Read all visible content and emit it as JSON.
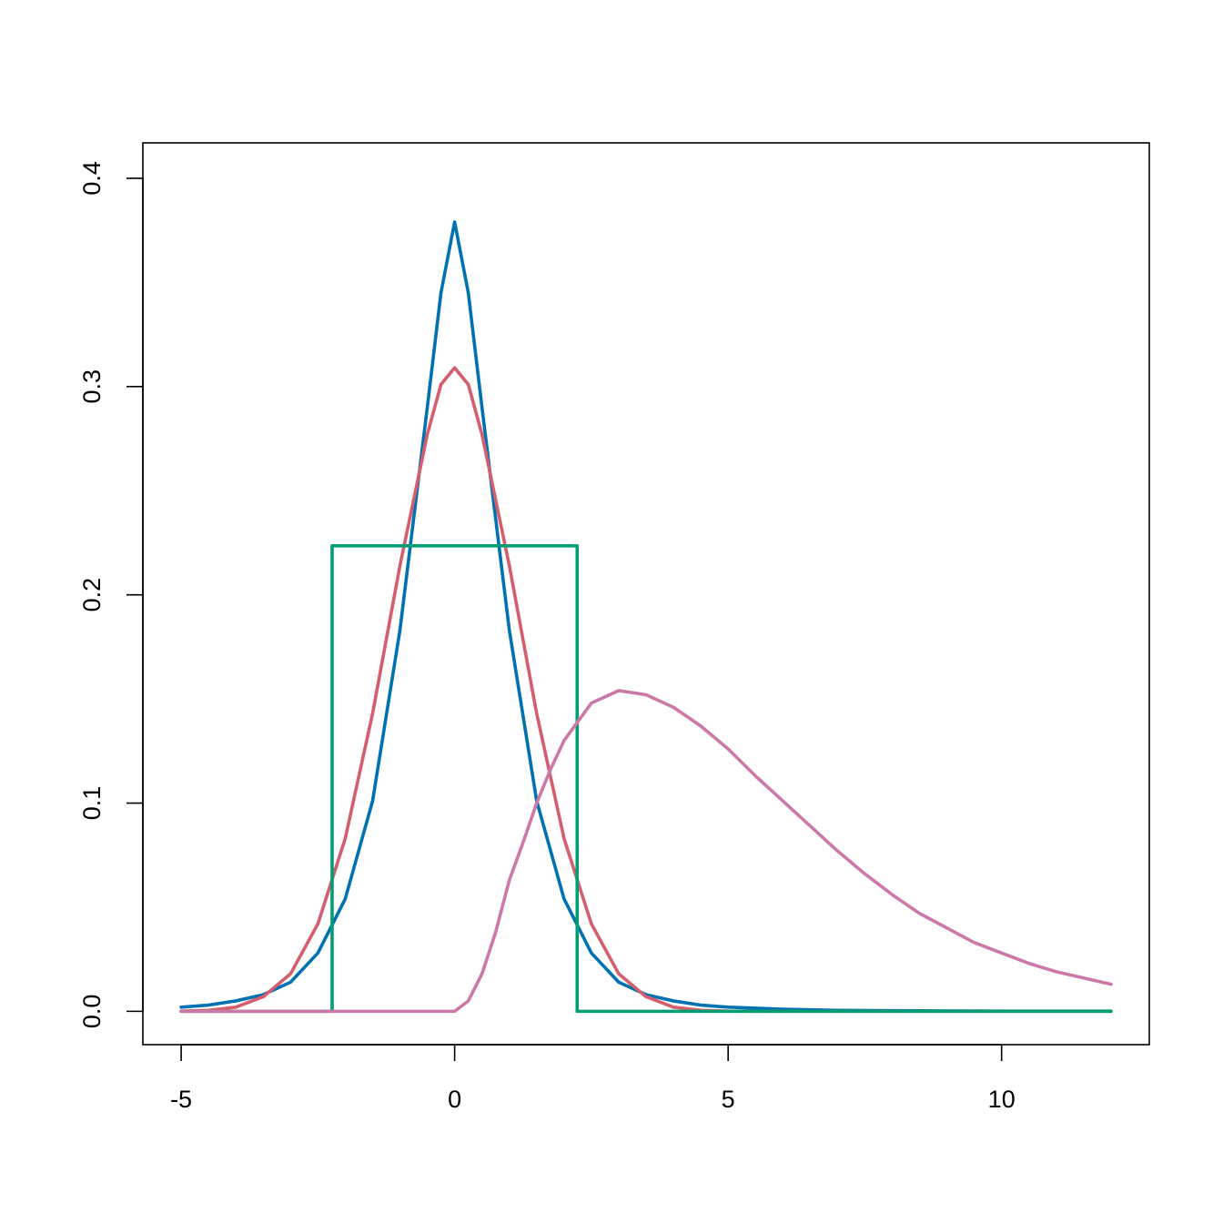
{
  "chart_data": {
    "type": "line",
    "title": "",
    "xlabel": "",
    "ylabel": "",
    "xlim": [
      -5.7,
      12.7
    ],
    "ylim": [
      -0.016,
      0.417
    ],
    "x_ticks": [
      -5,
      0,
      5,
      10
    ],
    "x_tick_labels": [
      "-5",
      "0",
      "5",
      "10"
    ],
    "y_ticks": [
      0.0,
      0.1,
      0.2,
      0.3,
      0.4
    ],
    "y_tick_labels": [
      "0.0",
      "0.1",
      "0.2",
      "0.3",
      "0.4"
    ],
    "grid": false,
    "legend": "none",
    "series": [
      {
        "color": "#0072B2",
        "points": [
          [
            -5,
            0.002
          ],
          [
            -4.5,
            0.003
          ],
          [
            -4,
            0.005
          ],
          [
            -3.5,
            0.008
          ],
          [
            -3,
            0.014
          ],
          [
            -2.5,
            0.028
          ],
          [
            -2,
            0.054
          ],
          [
            -1.5,
            0.101
          ],
          [
            -1,
            0.183
          ],
          [
            -0.5,
            0.29
          ],
          [
            -0.25,
            0.345
          ],
          [
            0,
            0.379
          ],
          [
            0.25,
            0.345
          ],
          [
            0.5,
            0.29
          ],
          [
            1,
            0.183
          ],
          [
            1.5,
            0.101
          ],
          [
            2,
            0.054
          ],
          [
            2.5,
            0.028
          ],
          [
            3,
            0.014
          ],
          [
            3.5,
            0.008
          ],
          [
            4,
            0.005
          ],
          [
            4.5,
            0.003
          ],
          [
            5,
            0.002
          ],
          [
            6,
            0.001
          ],
          [
            7,
            0.0005
          ],
          [
            8,
            0.0003
          ],
          [
            9,
            0.0002
          ],
          [
            10,
            0.0001
          ],
          [
            11,
            0.0001
          ],
          [
            12,
            0.0001
          ]
        ]
      },
      {
        "color": "#D55E6E",
        "points": [
          [
            -5,
            0.0001
          ],
          [
            -4.5,
            0.0005
          ],
          [
            -4,
            0.002
          ],
          [
            -3.5,
            0.007
          ],
          [
            -3,
            0.018
          ],
          [
            -2.5,
            0.042
          ],
          [
            -2,
            0.083
          ],
          [
            -1.5,
            0.143
          ],
          [
            -1,
            0.214
          ],
          [
            -0.5,
            0.277
          ],
          [
            -0.25,
            0.301
          ],
          [
            0,
            0.309
          ],
          [
            0.25,
            0.301
          ],
          [
            0.5,
            0.277
          ],
          [
            1,
            0.214
          ],
          [
            1.5,
            0.143
          ],
          [
            2,
            0.083
          ],
          [
            2.5,
            0.042
          ],
          [
            3,
            0.018
          ],
          [
            3.5,
            0.007
          ],
          [
            4,
            0.002
          ],
          [
            4.5,
            0.0005
          ],
          [
            5,
            0.0001
          ],
          [
            6,
            0
          ],
          [
            8,
            0
          ],
          [
            10,
            0
          ],
          [
            12,
            0
          ]
        ]
      },
      {
        "color": "#009E73",
        "points": [
          [
            -5,
            0
          ],
          [
            -2.24,
            0
          ],
          [
            -2.24,
            0.2235
          ],
          [
            2.24,
            0.2235
          ],
          [
            2.24,
            0
          ],
          [
            12,
            0
          ]
        ]
      },
      {
        "color": "#CC79A7",
        "points": [
          [
            -5,
            0
          ],
          [
            0,
            0
          ],
          [
            0.25,
            0.005
          ],
          [
            0.5,
            0.018
          ],
          [
            0.75,
            0.038
          ],
          [
            1,
            0.063
          ],
          [
            1.25,
            0.081
          ],
          [
            1.5,
            0.1
          ],
          [
            1.75,
            0.116
          ],
          [
            2,
            0.13
          ],
          [
            2.5,
            0.148
          ],
          [
            3,
            0.154
          ],
          [
            3.5,
            0.152
          ],
          [
            4,
            0.146
          ],
          [
            4.5,
            0.137
          ],
          [
            5,
            0.126
          ],
          [
            5.5,
            0.113
          ],
          [
            6,
            0.101
          ],
          [
            6.5,
            0.089
          ],
          [
            7,
            0.077
          ],
          [
            7.5,
            0.066
          ],
          [
            8,
            0.056
          ],
          [
            8.5,
            0.047
          ],
          [
            9,
            0.04
          ],
          [
            9.5,
            0.033
          ],
          [
            10,
            0.028
          ],
          [
            10.5,
            0.023
          ],
          [
            11,
            0.019
          ],
          [
            11.5,
            0.016
          ],
          [
            12,
            0.013
          ]
        ]
      }
    ]
  }
}
